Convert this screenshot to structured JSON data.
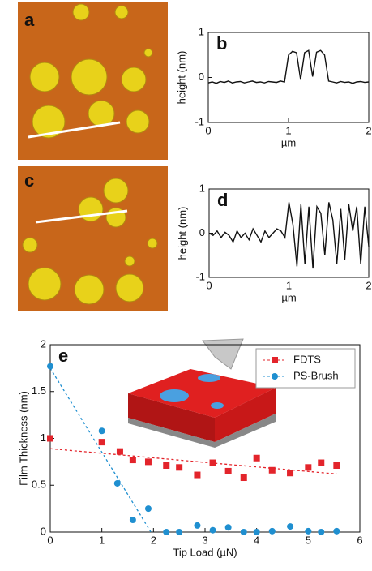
{
  "chart_data": [
    {
      "type": "image",
      "label": "a"
    },
    {
      "type": "line",
      "label": "b",
      "xlabel": "µm",
      "ylabel": "height (nm)",
      "color": "#111111",
      "xlim": [
        0,
        2
      ],
      "ylim": [
        -1,
        1
      ],
      "xticks": [
        0,
        1,
        2
      ],
      "yticks": [
        -1,
        0,
        1
      ],
      "x": [
        0,
        0.05,
        0.1,
        0.15,
        0.2,
        0.25,
        0.3,
        0.35,
        0.4,
        0.45,
        0.5,
        0.55,
        0.6,
        0.65,
        0.7,
        0.75,
        0.8,
        0.85,
        0.9,
        0.95,
        1,
        1.05,
        1.1,
        1.15,
        1.2,
        1.25,
        1.3,
        1.35,
        1.4,
        1.45,
        1.5,
        1.55,
        1.6,
        1.65,
        1.7,
        1.75,
        1.8,
        1.85,
        1.9,
        1.95,
        2
      ],
      "values": [
        -0.12,
        -0.1,
        -0.13,
        -0.09,
        -0.11,
        -0.08,
        -0.12,
        -0.1,
        -0.09,
        -0.12,
        -0.1,
        -0.08,
        -0.11,
        -0.1,
        -0.12,
        -0.09,
        -0.1,
        -0.11,
        -0.08,
        -0.1,
        0.5,
        0.58,
        0.55,
        -0.05,
        0.55,
        0.6,
        0.02,
        0.56,
        0.6,
        0.5,
        -0.08,
        -0.1,
        -0.12,
        -0.09,
        -0.11,
        -0.1,
        -0.13,
        -0.1,
        -0.09,
        -0.11,
        -0.1
      ]
    },
    {
      "type": "image",
      "label": "c"
    },
    {
      "type": "line",
      "label": "d",
      "xlabel": "µm",
      "ylabel": "height (nm)",
      "color": "#111111",
      "xlim": [
        0,
        2
      ],
      "ylim": [
        -1,
        1
      ],
      "xticks": [
        0,
        1,
        2
      ],
      "yticks": [
        -1,
        0,
        1
      ],
      "x": [
        0,
        0.05,
        0.1,
        0.15,
        0.2,
        0.25,
        0.3,
        0.35,
        0.4,
        0.45,
        0.5,
        0.55,
        0.6,
        0.65,
        0.7,
        0.75,
        0.8,
        0.85,
        0.9,
        0.95,
        1,
        1.05,
        1.1,
        1.15,
        1.2,
        1.25,
        1.3,
        1.35,
        1.4,
        1.45,
        1.5,
        1.55,
        1.6,
        1.65,
        1.7,
        1.75,
        1.8,
        1.85,
        1.9,
        1.95,
        2
      ],
      "values": [
        0,
        -0.05,
        0.05,
        -0.1,
        0.02,
        -0.05,
        -0.2,
        0.05,
        -0.1,
        0,
        -0.15,
        0.1,
        -0.05,
        -0.2,
        0.05,
        -0.1,
        0,
        0.1,
        0.05,
        -0.1,
        0.7,
        0.2,
        -0.75,
        0.65,
        -0.7,
        0.6,
        -0.8,
        0.6,
        0.45,
        -0.5,
        0.7,
        0.3,
        -0.7,
        0.55,
        -0.6,
        0.65,
        0.05,
        0.6,
        -0.7,
        0.6,
        -0.3
      ]
    },
    {
      "type": "scatter",
      "label": "e",
      "xlabel": "Tip Load (µN)",
      "ylabel": "Film Thickness (nm)",
      "xlim": [
        0,
        6
      ],
      "ylim": [
        0,
        2
      ],
      "xticks": [
        0,
        1,
        2,
        3,
        4,
        5,
        6
      ],
      "yticks": [
        0,
        0.5,
        1,
        1.5,
        2
      ],
      "legend": "upper right",
      "series": [
        {
          "name": "FDTS",
          "color": "#e3242b",
          "marker": "square",
          "x": [
            0,
            1,
            1.35,
            1.6,
            1.9,
            2.25,
            2.5,
            2.85,
            3.15,
            3.45,
            3.75,
            4,
            4.3,
            4.65,
            5,
            5.25,
            5.55
          ],
          "values": [
            1,
            0.96,
            0.86,
            0.77,
            0.75,
            0.71,
            0.69,
            0.61,
            0.74,
            0.65,
            0.58,
            0.79,
            0.66,
            0.63,
            0.69,
            0.74,
            0.71
          ],
          "fit": {
            "x": [
              0,
              5.55
            ],
            "values": [
              0.89,
              0.62
            ]
          }
        },
        {
          "name": "PS-Brush",
          "color": "#1f8fd0",
          "marker": "circle",
          "x": [
            0,
            1,
            1.3,
            1.6,
            1.9,
            2.25,
            2.5,
            2.85,
            3.15,
            3.45,
            3.75,
            4,
            4.3,
            4.65,
            5,
            5.25,
            5.55
          ],
          "values": [
            1.77,
            1.08,
            0.52,
            0.13,
            0.25,
            0,
            0,
            0.07,
            0.02,
            0.05,
            0,
            0,
            0.01,
            0.06,
            0.01,
            0,
            0.01
          ],
          "fit": {
            "x": [
              0,
              1.95
            ],
            "values": [
              1.75,
              0
            ]
          }
        }
      ]
    }
  ]
}
